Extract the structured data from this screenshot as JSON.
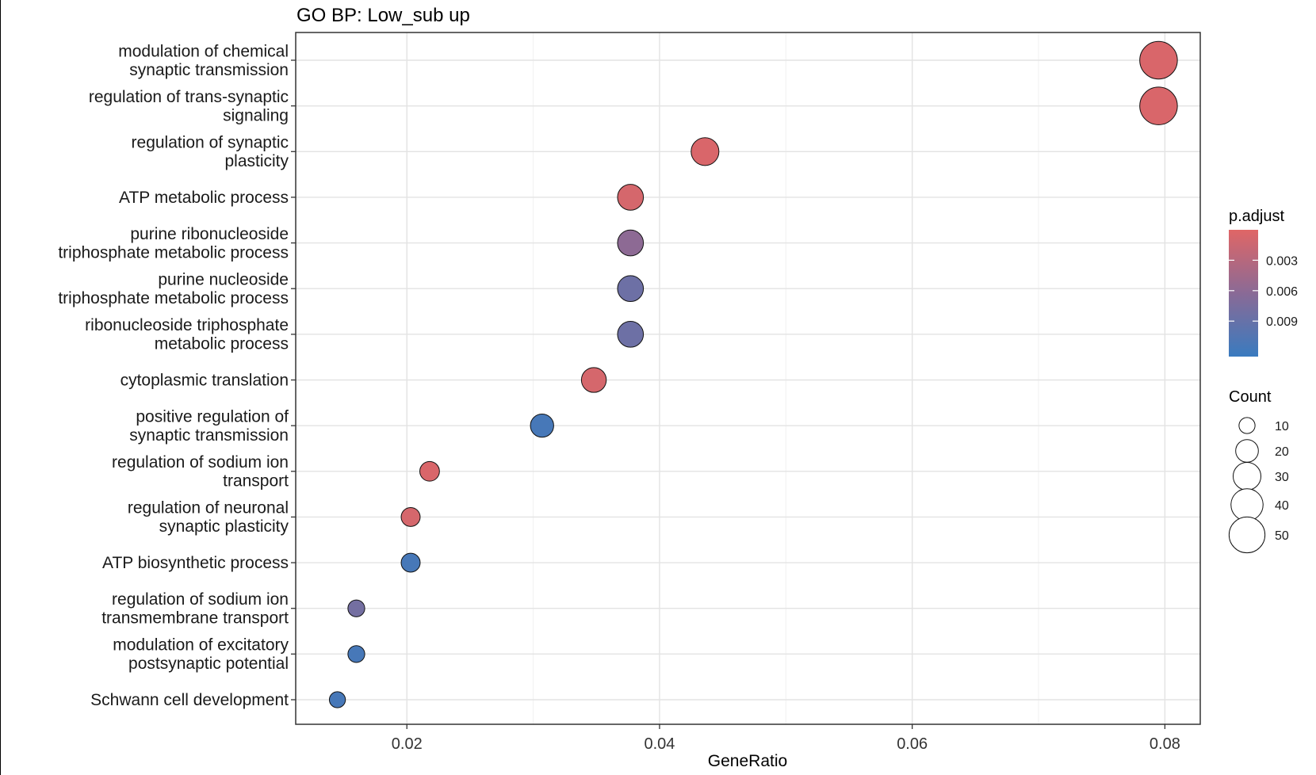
{
  "chart_data": {
    "type": "scatter",
    "title": "GO BP: Low_sub up",
    "xlabel": "GeneRatio",
    "ylabel": "",
    "xlim": [
      0.0112,
      0.0828
    ],
    "x_ticks": [
      0.02,
      0.04,
      0.06,
      0.08
    ],
    "x_tick_labels": [
      "0.02",
      "0.04",
      "0.06",
      "0.08"
    ],
    "grid": true,
    "legend_position": "right",
    "categories": [
      [
        "modulation of chemical",
        "synaptic transmission"
      ],
      [
        "regulation of trans-synaptic",
        "signaling"
      ],
      [
        "regulation of synaptic",
        "plasticity"
      ],
      [
        "ATP metabolic process"
      ],
      [
        "purine ribonucleoside",
        "triphosphate metabolic process"
      ],
      [
        "purine nucleoside",
        "triphosphate metabolic process"
      ],
      [
        "ribonucleoside triphosphate",
        "metabolic process"
      ],
      [
        "cytoplasmic translation"
      ],
      [
        "positive regulation of",
        "synaptic transmission"
      ],
      [
        "regulation of sodium ion",
        "transport"
      ],
      [
        "regulation of neuronal",
        "synaptic plasticity"
      ],
      [
        "ATP biosynthetic process"
      ],
      [
        "regulation of sodium ion",
        "transmembrane transport"
      ],
      [
        "modulation of excitatory",
        "postsynaptic potential"
      ],
      [
        "Schwann cell development"
      ]
    ],
    "gene_ratio": [
      0.0795,
      0.0795,
      0.0436,
      0.0377,
      0.0377,
      0.0377,
      0.0377,
      0.0348,
      0.0307,
      0.0218,
      0.0203,
      0.0203,
      0.016,
      0.016,
      0.0145
    ],
    "count": [
      55,
      55,
      30,
      26,
      26,
      26,
      26,
      24,
      21,
      15,
      14,
      14,
      11,
      11,
      10
    ],
    "p_adjust": [
      0.0005,
      0.0005,
      0.0005,
      0.0008,
      0.006,
      0.0085,
      0.0085,
      0.0008,
      0.0115,
      0.0005,
      0.0008,
      0.0115,
      0.008,
      0.0115,
      0.0115
    ],
    "color_legend": {
      "title": "p.adjust",
      "low_color": "#e06666",
      "mid_color": "#8a6a96",
      "high_color": "#3a7bbf",
      "range": [
        0.0,
        0.0125
      ],
      "ticks": [
        0.003,
        0.006,
        0.009
      ],
      "tick_labels": [
        "0.003",
        "0.006",
        "0.009"
      ]
    },
    "size_legend": {
      "title": "Count",
      "values": [
        10,
        20,
        30,
        40,
        50
      ],
      "labels": [
        "10",
        "20",
        "30",
        "40",
        "50"
      ]
    }
  }
}
